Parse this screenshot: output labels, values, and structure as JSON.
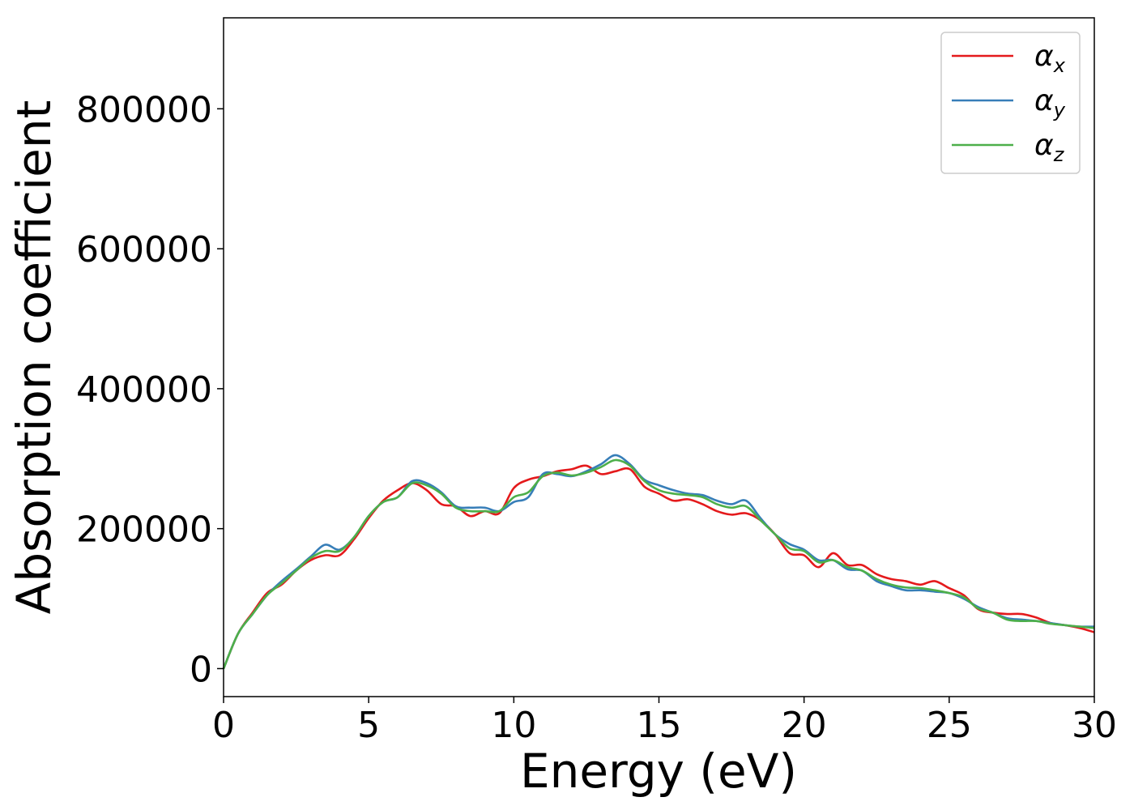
{
  "chart_data": {
    "type": "line",
    "title": "",
    "xlabel": "Energy (eV)",
    "ylabel": "Absorption coefficient",
    "xlim": [
      0,
      30
    ],
    "ylim": [
      -40000,
      930000
    ],
    "xticks": [
      0,
      5,
      10,
      15,
      20,
      25,
      30
    ],
    "xtick_labels": [
      "0",
      "5",
      "10",
      "15",
      "20",
      "25",
      "30"
    ],
    "yticks": [
      0,
      200000,
      400000,
      600000,
      800000
    ],
    "ytick_labels": [
      "0",
      "200000",
      "400000",
      "600000",
      "800000"
    ],
    "grid": false,
    "legend_position": "top-right",
    "x": [
      0,
      0.5,
      1,
      1.5,
      2,
      2.5,
      3,
      3.5,
      4,
      4.5,
      5,
      5.5,
      6,
      6.5,
      7,
      7.5,
      8,
      8.5,
      9,
      9.5,
      10,
      10.5,
      11,
      11.5,
      12,
      12.5,
      13,
      13.5,
      14,
      14.5,
      15,
      15.5,
      16,
      16.5,
      17,
      17.5,
      18,
      18.5,
      19,
      19.5,
      20,
      20.5,
      21,
      21.5,
      22,
      22.5,
      23,
      23.5,
      24,
      24.5,
      25,
      25.5,
      26,
      26.5,
      27,
      27.5,
      28,
      28.5,
      29,
      29.5,
      30
    ],
    "series": [
      {
        "name": "α",
        "subscript": "x",
        "color": "#e41a1c",
        "values": [
          0,
          50000,
          80000,
          108000,
          120000,
          140000,
          155000,
          162000,
          162000,
          185000,
          215000,
          240000,
          255000,
          265000,
          255000,
          235000,
          232000,
          218000,
          225000,
          222000,
          258000,
          270000,
          275000,
          282000,
          285000,
          290000,
          278000,
          282000,
          285000,
          260000,
          250000,
          240000,
          242000,
          235000,
          225000,
          220000,
          222000,
          212000,
          192000,
          165000,
          162000,
          145000,
          165000,
          148000,
          148000,
          135000,
          128000,
          125000,
          120000,
          125000,
          115000,
          105000,
          85000,
          80000,
          78000,
          78000,
          73000,
          65000,
          62000,
          58000,
          52000
        ]
      },
      {
        "name": "α",
        "subscript": "y",
        "color": "#377eb8",
        "values": [
          0,
          50000,
          78000,
          105000,
          125000,
          142000,
          160000,
          177000,
          170000,
          188000,
          218000,
          238000,
          245000,
          268000,
          265000,
          252000,
          232000,
          230000,
          230000,
          225000,
          238000,
          245000,
          278000,
          278000,
          275000,
          282000,
          292000,
          305000,
          292000,
          270000,
          262000,
          255000,
          250000,
          248000,
          240000,
          235000,
          240000,
          215000,
          192000,
          178000,
          170000,
          155000,
          155000,
          142000,
          140000,
          125000,
          118000,
          112000,
          112000,
          110000,
          108000,
          100000,
          88000,
          80000,
          72000,
          70000,
          68000,
          65000,
          62000,
          60000,
          60000
        ]
      },
      {
        "name": "α",
        "subscript": "z",
        "color": "#4daf4a",
        "values": [
          0,
          50000,
          78000,
          105000,
          122000,
          140000,
          158000,
          168000,
          168000,
          188000,
          218000,
          238000,
          245000,
          265000,
          262000,
          250000,
          230000,
          225000,
          225000,
          225000,
          245000,
          252000,
          275000,
          280000,
          276000,
          280000,
          288000,
          298000,
          290000,
          268000,
          255000,
          250000,
          248000,
          245000,
          235000,
          230000,
          232000,
          212000,
          192000,
          172000,
          168000,
          152000,
          155000,
          145000,
          140000,
          128000,
          120000,
          116000,
          115000,
          112000,
          108000,
          102000,
          86000,
          80000,
          70000,
          68000,
          68000,
          64000,
          62000,
          60000,
          58000
        ]
      }
    ]
  }
}
